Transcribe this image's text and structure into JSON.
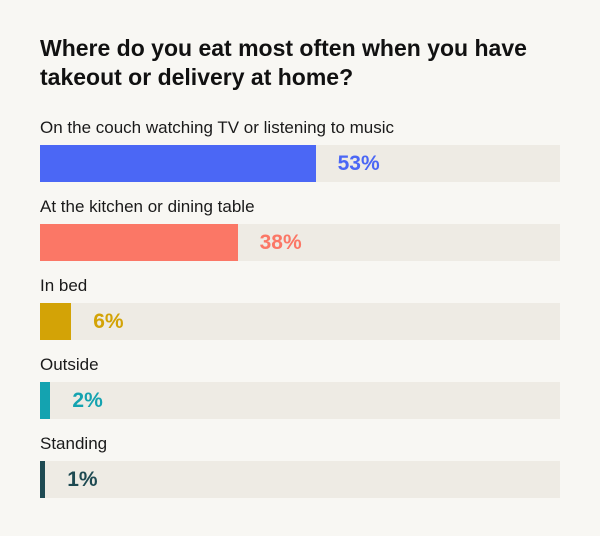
{
  "chart_data": {
    "type": "bar",
    "orientation": "horizontal",
    "title": "Where do you eat most often when you have takeout or delivery at home?",
    "categories": [
      "On the couch watching TV or listening to music",
      "At the kitchen or dining table",
      "In bed",
      "Outside",
      "Standing"
    ],
    "values": [
      53,
      38,
      6,
      2,
      1
    ],
    "value_labels": [
      "53%",
      "38%",
      "6%",
      "2%",
      "1%"
    ],
    "colors": [
      "#4b67f5",
      "#fb7766",
      "#d3a306",
      "#14a3b0",
      "#1e4a52"
    ],
    "xlim": [
      0,
      100
    ],
    "grid": false,
    "legend": "none"
  }
}
